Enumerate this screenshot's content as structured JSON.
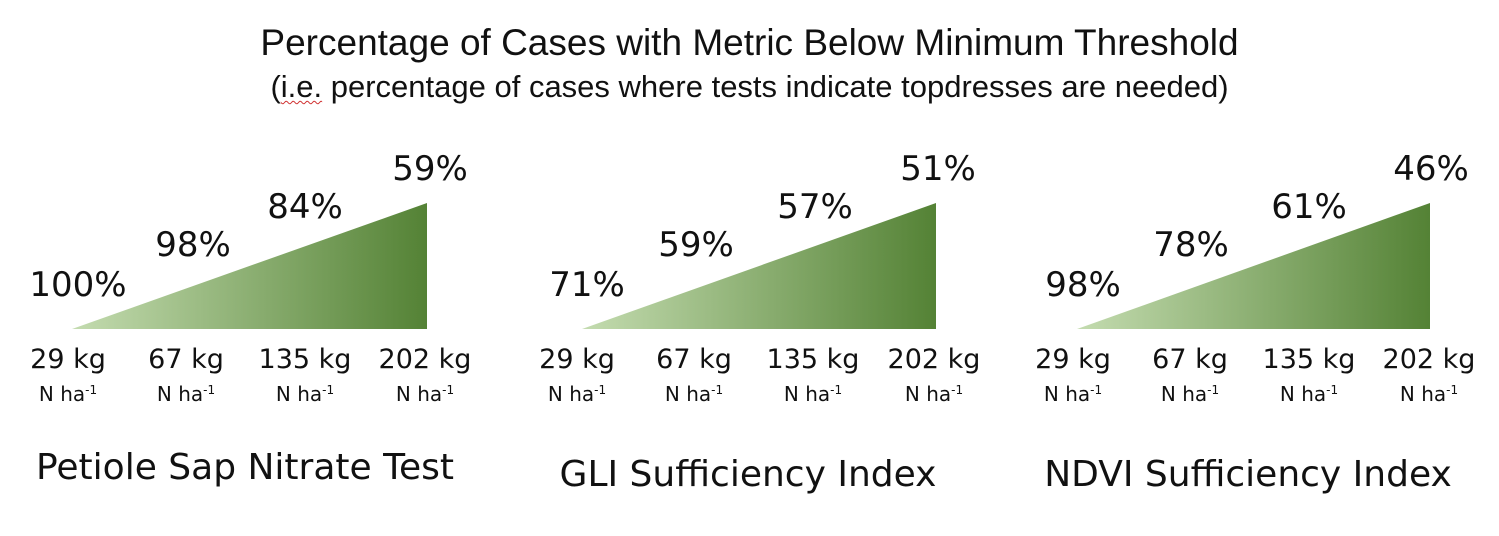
{
  "chart_data": {
    "type": "area",
    "title": "Percentage of Cases with Metric Below Minimum Threshold",
    "subtitle_parts": [
      "(",
      "i.e.",
      " percentage of cases where tests indicate topdresses are needed)"
    ],
    "categories": [
      "29 kg",
      "67 kg",
      "135 kg",
      "202 kg"
    ],
    "unit_base": "N ha",
    "unit_exp": "-1",
    "panels": [
      {
        "name": "Petiole Sap Nitrate Test",
        "values": [
          100,
          98,
          84,
          59
        ],
        "labels": [
          "100%",
          "98%",
          "84%",
          "59%"
        ]
      },
      {
        "name": "GLI Sufficiency Index",
        "values": [
          71,
          59,
          57,
          51
        ],
        "labels": [
          "71%",
          "59%",
          "57%",
          "51%"
        ]
      },
      {
        "name": "NDVI Sufficiency Index",
        "values": [
          98,
          78,
          61,
          46
        ],
        "labels": [
          "98%",
          "78%",
          "61%",
          "46%"
        ]
      }
    ],
    "colors": {
      "light": "#c4dcb0",
      "dark": "#548235"
    }
  }
}
